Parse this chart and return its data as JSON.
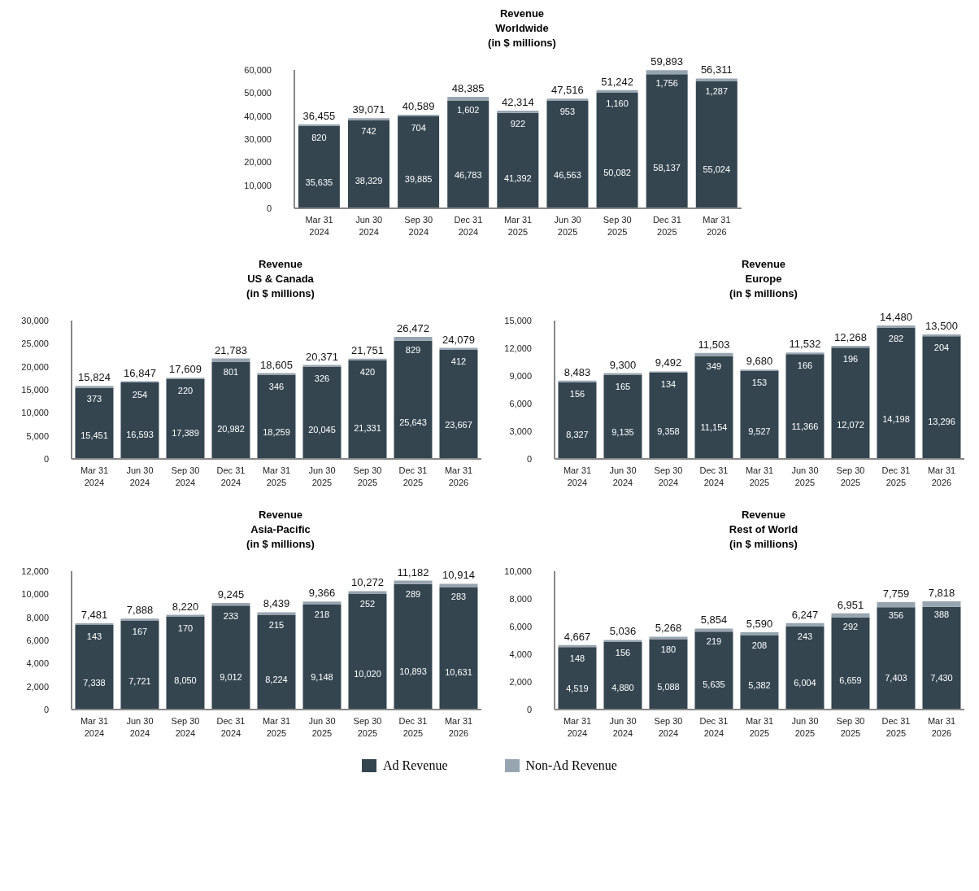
{
  "chart_data": [
    {
      "type": "bar",
      "title": "Revenue\nWorldwide\n(in $ millions)",
      "categories": [
        "Mar 31\n2024",
        "Jun 30\n2024",
        "Sep 30\n2024",
        "Dec 31\n2024",
        "Mar 31\n2025",
        "Jun 30\n2025",
        "Sep 30\n2025",
        "Dec 31\n2025",
        "Mar 31\n2026"
      ],
      "stacked": true,
      "legend": "bottom",
      "ylim": [
        0,
        60000
      ],
      "yticks": [
        {
          "value": 0,
          "label": "0"
        },
        {
          "value": 10000,
          "label": "10,000"
        },
        {
          "value": 20000,
          "label": "20,000"
        },
        {
          "value": 30000,
          "label": "30,000"
        },
        {
          "value": 40000,
          "label": "40,000"
        },
        {
          "value": 50000,
          "label": "50,000"
        },
        {
          "value": 60000,
          "label": "60,000"
        }
      ],
      "series": [
        {
          "name": "Ad Revenue",
          "color": "#344550",
          "values": [
            35635,
            38329,
            39885,
            46783,
            41392,
            46563,
            50082,
            58137,
            55024
          ],
          "value_labels": [
            "35,635",
            "38,329",
            "39,885",
            "46,783",
            "41,392",
            "46,563",
            "50,082",
            "58,137",
            "55,024"
          ]
        },
        {
          "name": "Non-Ad Revenue",
          "color": "#97a5b0",
          "values": [
            820,
            742,
            704,
            1602,
            922,
            953,
            1160,
            1756,
            1287
          ],
          "value_labels": [
            "820",
            "742",
            "704",
            "1,602",
            "922",
            "953",
            "1,160",
            "1,756",
            "1,287"
          ]
        }
      ],
      "totals": [
        "36,455",
        "39,071",
        "40,589",
        "48,385",
        "42,314",
        "47,516",
        "51,242",
        "59,893",
        "56,311"
      ]
    },
    {
      "type": "bar",
      "title": "Revenue\nUS & Canada\n(in $ millions)",
      "categories": [
        "Mar 31\n2024",
        "Jun 30\n2024",
        "Sep 30\n2024",
        "Dec 31\n2024",
        "Mar 31\n2025",
        "Jun 30\n2025",
        "Sep 30\n2025",
        "Dec 31\n2025",
        "Mar 31\n2026"
      ],
      "stacked": true,
      "ylim": [
        0,
        30000
      ],
      "yticks": [
        {
          "value": 0,
          "label": "0"
        },
        {
          "value": 5000,
          "label": "5,000"
        },
        {
          "value": 10000,
          "label": "10,000"
        },
        {
          "value": 15000,
          "label": "15,000"
        },
        {
          "value": 20000,
          "label": "20,000"
        },
        {
          "value": 25000,
          "label": "25,000"
        },
        {
          "value": 30000,
          "label": "30,000"
        }
      ],
      "series": [
        {
          "name": "Ad Revenue",
          "color": "#344550",
          "values": [
            15451,
            16593,
            17389,
            20982,
            18259,
            20045,
            21331,
            25643,
            23667
          ],
          "value_labels": [
            "15,451",
            "16,593",
            "17,389",
            "20,982",
            "18,259",
            "20,045",
            "21,331",
            "25,643",
            "23,667"
          ]
        },
        {
          "name": "Non-Ad Revenue",
          "color": "#97a5b0",
          "values": [
            373,
            254,
            220,
            801,
            346,
            326,
            420,
            829,
            412
          ],
          "value_labels": [
            "373",
            "254",
            "220",
            "801",
            "346",
            "326",
            "420",
            "829",
            "412"
          ]
        }
      ],
      "totals": [
        "15,824",
        "16,847",
        "17,609",
        "21,783",
        "18,605",
        "20,371",
        "21,751",
        "26,472",
        "24,079"
      ]
    },
    {
      "type": "bar",
      "title": "Revenue\nEurope\n(in $ millions)",
      "categories": [
        "Mar 31\n2024",
        "Jun 30\n2024",
        "Sep 30\n2024",
        "Dec 31\n2024",
        "Mar 31\n2025",
        "Jun 30\n2025",
        "Sep 30\n2025",
        "Dec 31\n2025",
        "Mar 31\n2026"
      ],
      "stacked": true,
      "ylim": [
        0,
        15000
      ],
      "yticks": [
        {
          "value": 0,
          "label": "0"
        },
        {
          "value": 3000,
          "label": "3,000"
        },
        {
          "value": 6000,
          "label": "6,000"
        },
        {
          "value": 9000,
          "label": "9,000"
        },
        {
          "value": 12000,
          "label": "12,000"
        },
        {
          "value": 15000,
          "label": "15,000"
        }
      ],
      "series": [
        {
          "name": "Ad Revenue",
          "color": "#344550",
          "values": [
            8327,
            9135,
            9358,
            11154,
            9527,
            11366,
            12072,
            14198,
            13296
          ],
          "value_labels": [
            "8,327",
            "9,135",
            "9,358",
            "11,154",
            "9,527",
            "11,366",
            "12,072",
            "14,198",
            "13,296"
          ]
        },
        {
          "name": "Non-Ad Revenue",
          "color": "#97a5b0",
          "values": [
            156,
            165,
            134,
            349,
            153,
            166,
            196,
            282,
            204
          ],
          "value_labels": [
            "156",
            "165",
            "134",
            "349",
            "153",
            "166",
            "196",
            "282",
            "204"
          ]
        }
      ],
      "totals": [
        "8,483",
        "9,300",
        "9,492",
        "11,503",
        "9,680",
        "11,532",
        "12,268",
        "14,480",
        "13,500"
      ]
    },
    {
      "type": "bar",
      "title": "Revenue\nAsia-Pacific\n(in $ millions)",
      "categories": [
        "Mar 31\n2024",
        "Jun 30\n2024",
        "Sep 30\n2024",
        "Dec 31\n2024",
        "Mar 31\n2025",
        "Jun 30\n2025",
        "Sep 30\n2025",
        "Dec 31\n2025",
        "Mar 31\n2026"
      ],
      "stacked": true,
      "ylim": [
        0,
        12000
      ],
      "yticks": [
        {
          "value": 0,
          "label": "0"
        },
        {
          "value": 2000,
          "label": "2,000"
        },
        {
          "value": 4000,
          "label": "4,000"
        },
        {
          "value": 6000,
          "label": "6,000"
        },
        {
          "value": 8000,
          "label": "8,000"
        },
        {
          "value": 10000,
          "label": "10,000"
        },
        {
          "value": 12000,
          "label": "12,000"
        }
      ],
      "series": [
        {
          "name": "Ad Revenue",
          "color": "#344550",
          "values": [
            7338,
            7721,
            8050,
            9012,
            8224,
            9148,
            10020,
            10893,
            10631
          ],
          "value_labels": [
            "7,338",
            "7,721",
            "8,050",
            "9,012",
            "8,224",
            "9,148",
            "10,020",
            "10,893",
            "10,631"
          ]
        },
        {
          "name": "Non-Ad Revenue",
          "color": "#97a5b0",
          "values": [
            143,
            167,
            170,
            233,
            215,
            218,
            252,
            289,
            283
          ],
          "value_labels": [
            "143",
            "167",
            "170",
            "233",
            "215",
            "218",
            "252",
            "289",
            "283"
          ]
        }
      ],
      "totals": [
        "7,481",
        "7,888",
        "8,220",
        "9,245",
        "8,439",
        "9,366",
        "10,272",
        "11,182",
        "10,914"
      ]
    },
    {
      "type": "bar",
      "title": "Revenue\nRest of World\n(in $ millions)",
      "categories": [
        "Mar 31\n2024",
        "Jun 30\n2024",
        "Sep 30\n2024",
        "Dec 31\n2024",
        "Mar 31\n2025",
        "Jun 30\n2025",
        "Sep 30\n2025",
        "Dec 31\n2025",
        "Mar 31\n2026"
      ],
      "stacked": true,
      "ylim": [
        0,
        10000
      ],
      "yticks": [
        {
          "value": 0,
          "label": "0"
        },
        {
          "value": 2000,
          "label": "2,000"
        },
        {
          "value": 4000,
          "label": "4,000"
        },
        {
          "value": 6000,
          "label": "6,000"
        },
        {
          "value": 8000,
          "label": "8,000"
        },
        {
          "value": 10000,
          "label": "10,000"
        }
      ],
      "series": [
        {
          "name": "Ad Revenue",
          "color": "#344550",
          "values": [
            4519,
            4880,
            5088,
            5635,
            5382,
            6004,
            6659,
            7403,
            7430
          ],
          "value_labels": [
            "4,519",
            "4,880",
            "5,088",
            "5,635",
            "5,382",
            "6,004",
            "6,659",
            "7,403",
            "7,430"
          ]
        },
        {
          "name": "Non-Ad Revenue",
          "color": "#97a5b0",
          "values": [
            148,
            156,
            180,
            219,
            208,
            243,
            292,
            356,
            388
          ],
          "value_labels": [
            "148",
            "156",
            "180",
            "219",
            "208",
            "243",
            "292",
            "356",
            "388"
          ]
        }
      ],
      "totals": [
        "4,667",
        "5,036",
        "5,268",
        "5,854",
        "5,590",
        "6,247",
        "6,951",
        "7,759",
        "7,818"
      ]
    }
  ]
}
